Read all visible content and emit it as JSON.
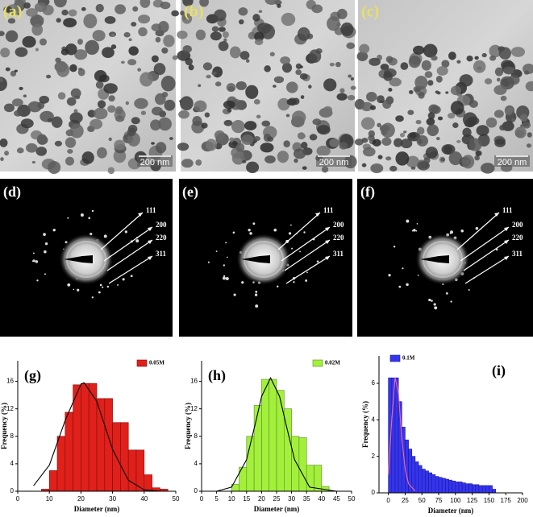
{
  "panels": {
    "tem": [
      {
        "label": "(a)",
        "scale_bar": "200 nm"
      },
      {
        "label": "(b)",
        "scale_bar": "200 nm"
      },
      {
        "label": "(c)",
        "scale_bar": "200 nm"
      }
    ],
    "saed": [
      {
        "label": "(d)",
        "rings": [
          "111",
          "200",
          "220",
          "311"
        ]
      },
      {
        "label": "(e)",
        "rings": [
          "111",
          "200",
          "220",
          "311"
        ]
      },
      {
        "label": "(f)",
        "rings": [
          "111",
          "200",
          "220",
          "311"
        ]
      }
    ]
  },
  "chart_data": [
    {
      "type": "histogram",
      "panel_label": "(g)",
      "xlabel": "Diameter (nm)",
      "ylabel": "Frequency (%)",
      "bins": [
        7.5,
        10,
        12.5,
        15,
        17.5,
        20,
        22.5,
        25,
        27.5,
        30,
        32.5,
        35,
        37.5,
        40,
        42.5,
        45,
        47.5
      ],
      "series": [
        {
          "name": "0.05M",
          "color": "#e0201b",
          "values": [
            0.3,
            3,
            8,
            11.5,
            15.5,
            15.7,
            15.7,
            13.5,
            13.5,
            10,
            10,
            6,
            6,
            2.4,
            0.5,
            0.3
          ]
        }
      ],
      "fit": {
        "color": "#000000",
        "x": [
          5,
          10,
          15,
          20,
          21,
          25,
          30,
          35,
          40,
          45,
          50
        ],
        "values": [
          0.8,
          3.8,
          10.3,
          15.6,
          15.8,
          13.1,
          6.1,
          1.6,
          0.2,
          0,
          0
        ]
      },
      "xlim": [
        0,
        50
      ],
      "ylim": [
        0,
        19
      ],
      "xticks": [
        0,
        10,
        20,
        30,
        40,
        50
      ],
      "yticks": [
        0,
        4,
        8,
        12,
        16
      ]
    },
    {
      "type": "histogram",
      "panel_label": "(h)",
      "xlabel": "Diameter (nm)",
      "ylabel": "Frequency (%)",
      "bins": [
        10,
        12.5,
        15,
        17.5,
        20,
        22.5,
        25,
        27.5,
        30,
        32.5,
        35,
        37.5,
        40,
        42.5
      ],
      "series": [
        {
          "name": "0.02M",
          "color": "#a3f03c",
          "values": [
            1,
            3.5,
            8,
            12.5,
            16.3,
            16.3,
            14.7,
            12,
            8,
            7.8,
            3.8,
            3.8,
            0.7
          ]
        }
      ],
      "fit": {
        "color": "#000000",
        "x": [
          5,
          10,
          15,
          18,
          20,
          23,
          26,
          28,
          31,
          36,
          45,
          50
        ],
        "values": [
          0,
          0.6,
          4.6,
          10,
          13.8,
          16.5,
          13.8,
          10,
          4.6,
          0.6,
          0,
          0
        ]
      },
      "xlim": [
        0,
        50
      ],
      "ylim": [
        0,
        19
      ],
      "xticks": [
        0,
        5,
        10,
        15,
        20,
        25,
        30,
        35,
        40,
        45,
        50
      ],
      "yticks": [
        0,
        4,
        8,
        12,
        16
      ]
    },
    {
      "type": "histogram",
      "panel_label": "(i)",
      "xlabel": "Diameter (nm)",
      "ylabel": "Frequency (%)",
      "bins": [
        0,
        5,
        10,
        15,
        20,
        25,
        30,
        35,
        40,
        45,
        50,
        55,
        60,
        65,
        70,
        75,
        80,
        85,
        90,
        95,
        100,
        105,
        110,
        115,
        120,
        125,
        130,
        135,
        140,
        145,
        150,
        155,
        160
      ],
      "series": [
        {
          "name": "0.1M",
          "color": "#3535ee",
          "values": [
            6.3,
            6.3,
            6.3,
            5.0,
            3.6,
            2.9,
            2.4,
            2.0,
            1.7,
            1.5,
            1.3,
            1.2,
            1.1,
            1.0,
            0.9,
            0.85,
            0.8,
            0.75,
            0.7,
            0.65,
            0.6,
            0.6,
            0.55,
            0.5,
            0.5,
            0.45,
            0.45,
            0.4,
            0.4,
            0.4,
            0.4,
            0.2
          ]
        }
      ],
      "fit": {
        "color": "#ff6699",
        "x": [
          0,
          5,
          10,
          15,
          20,
          25,
          30,
          40
        ],
        "values": [
          1,
          4,
          6.3,
          5.5,
          3,
          1.3,
          0.5,
          0.1
        ]
      },
      "xlim": [
        -14,
        200
      ],
      "ylim": [
        0,
        7.5
      ],
      "xticks": [
        0,
        25,
        50,
        75,
        100,
        125,
        150,
        175,
        200
      ],
      "yticks": [
        0,
        2,
        4,
        6
      ]
    }
  ]
}
